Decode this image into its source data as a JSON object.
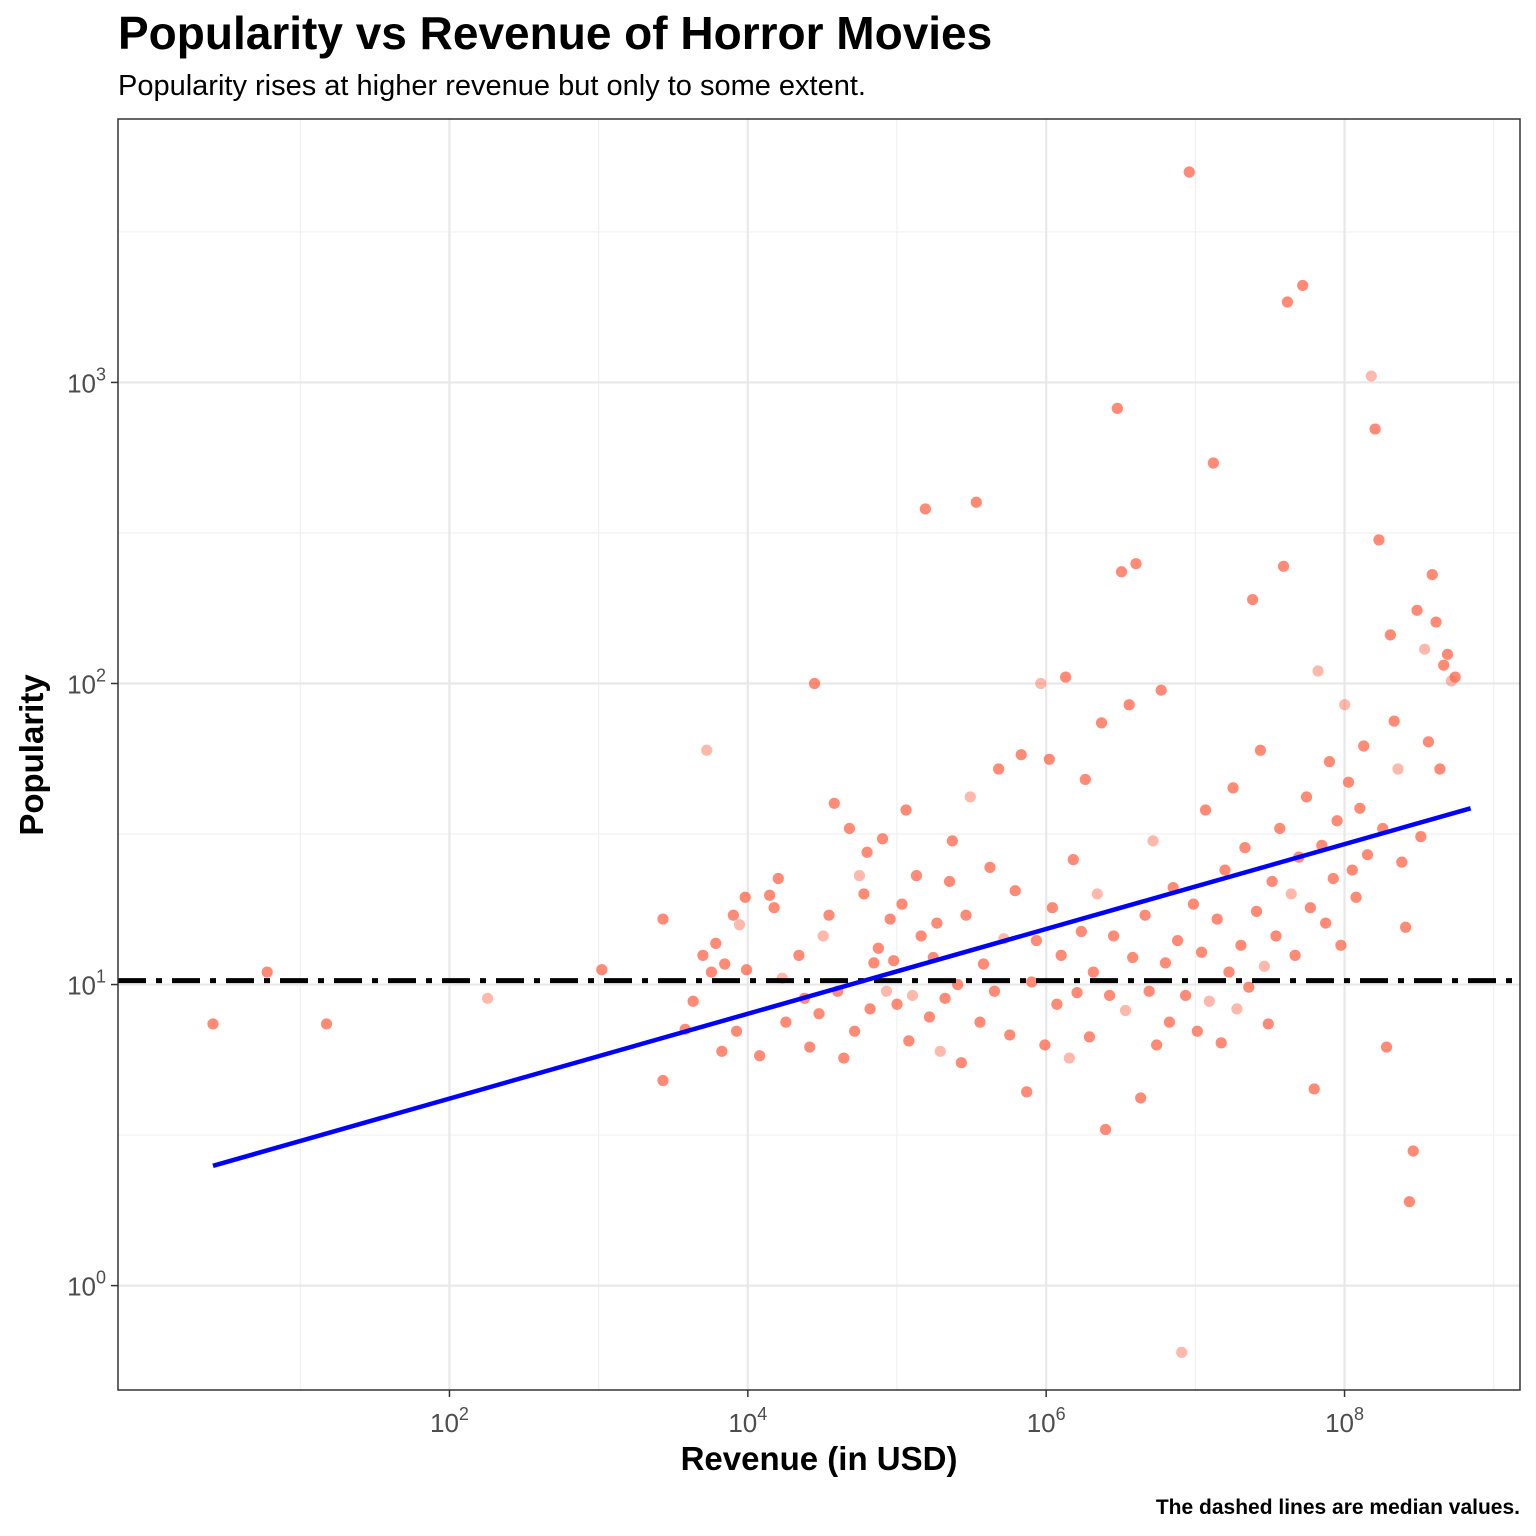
{
  "chart_data": {
    "type": "scatter",
    "title": "Popularity vs Revenue of Horror Movies",
    "subtitle": "Popularity rises at higher revenue but only to some extent.",
    "xlabel": "Revenue (in USD)",
    "ylabel": "Popularity",
    "caption": "The dashed lines are median values.",
    "x_scale": "log10",
    "y_scale": "log10",
    "xlim": [
      0.6,
      1500000000
    ],
    "ylim": [
      0.45,
      7500
    ],
    "x_ticks": [
      {
        "value": 100,
        "base": "10",
        "exp": "2"
      },
      {
        "value": 10000,
        "base": "10",
        "exp": "4"
      },
      {
        "value": 1000000,
        "base": "10",
        "exp": "6"
      },
      {
        "value": 100000000,
        "base": "10",
        "exp": "8"
      }
    ],
    "y_ticks": [
      {
        "value": 1,
        "base": "10",
        "exp": "0"
      },
      {
        "value": 10,
        "base": "10",
        "exp": "1"
      },
      {
        "value": 100,
        "base": "10",
        "exp": "2"
      },
      {
        "value": 1000,
        "base": "10",
        "exp": "3"
      }
    ],
    "grid": true,
    "median_popularity": 10.3,
    "trend_line": {
      "x": [
        2.6,
        700000000
      ],
      "y": [
        2.5,
        38.5
      ]
    },
    "points": [
      [
        2.6,
        7.4
      ],
      [
        6,
        11
      ],
      [
        15,
        7.4
      ],
      [
        180,
        9
      ],
      [
        1050,
        11.2
      ],
      [
        2700,
        16.5
      ],
      [
        2700,
        4.8
      ],
      [
        3800,
        7.1
      ],
      [
        4300,
        8.8
      ],
      [
        5000,
        12.5
      ],
      [
        5300,
        60
      ],
      [
        5700,
        11
      ],
      [
        6100,
        13.7
      ],
      [
        6700,
        6
      ],
      [
        7000,
        11.7
      ],
      [
        8000,
        17
      ],
      [
        8400,
        7
      ],
      [
        8800,
        15.8
      ],
      [
        9600,
        19.5
      ],
      [
        9800,
        11.2
      ],
      [
        12000,
        5.8
      ],
      [
        14000,
        19.8
      ],
      [
        15000,
        18
      ],
      [
        16000,
        22.5
      ],
      [
        17000,
        10.5
      ],
      [
        18000,
        7.5
      ],
      [
        22000,
        12.5
      ],
      [
        24000,
        9
      ],
      [
        26000,
        6.2
      ],
      [
        28000,
        100
      ],
      [
        30000,
        8
      ],
      [
        32000,
        14.5
      ],
      [
        35000,
        17
      ],
      [
        38000,
        40
      ],
      [
        40000,
        9.5
      ],
      [
        44000,
        5.7
      ],
      [
        48000,
        33
      ],
      [
        52000,
        7
      ],
      [
        56000,
        23
      ],
      [
        60000,
        20
      ],
      [
        63000,
        27.5
      ],
      [
        66000,
        8.3
      ],
      [
        70000,
        11.8
      ],
      [
        75000,
        13.2
      ],
      [
        80000,
        30.5
      ],
      [
        85000,
        9.5
      ],
      [
        90000,
        16.5
      ],
      [
        95000,
        12
      ],
      [
        100000,
        8.6
      ],
      [
        108000,
        18.5
      ],
      [
        115000,
        38
      ],
      [
        120000,
        6.5
      ],
      [
        127000,
        9.2
      ],
      [
        135000,
        23
      ],
      [
        145000,
        14.5
      ],
      [
        155000,
        380
      ],
      [
        165000,
        7.8
      ],
      [
        175000,
        12.3
      ],
      [
        185000,
        16
      ],
      [
        195000,
        6
      ],
      [
        210000,
        9
      ],
      [
        225000,
        22
      ],
      [
        235000,
        30
      ],
      [
        255000,
        10
      ],
      [
        270000,
        5.5
      ],
      [
        290000,
        17
      ],
      [
        310000,
        42
      ],
      [
        340000,
        400
      ],
      [
        360000,
        7.5
      ],
      [
        380000,
        11.7
      ],
      [
        420000,
        24.5
      ],
      [
        450000,
        9.5
      ],
      [
        480000,
        52
      ],
      [
        520000,
        14.2
      ],
      [
        570000,
        6.8
      ],
      [
        620000,
        20.5
      ],
      [
        680000,
        58
      ],
      [
        740000,
        4.4
      ],
      [
        800000,
        10.2
      ],
      [
        860000,
        14
      ],
      [
        920000,
        100
      ],
      [
        980000,
        6.3
      ],
      [
        1050000,
        56
      ],
      [
        1100000,
        18
      ],
      [
        1180000,
        8.6
      ],
      [
        1260000,
        12.5
      ],
      [
        1350000,
        105
      ],
      [
        1430000,
        5.7
      ],
      [
        1520000,
        26
      ],
      [
        1610000,
        9.4
      ],
      [
        1720000,
        15
      ],
      [
        1830000,
        48
      ],
      [
        1950000,
        6.7
      ],
      [
        2070000,
        11
      ],
      [
        2200000,
        20
      ],
      [
        2350000,
        74
      ],
      [
        2500000,
        3.3
      ],
      [
        2660000,
        9.2
      ],
      [
        2830000,
        14.5
      ],
      [
        3000000,
        820
      ],
      [
        3200000,
        235
      ],
      [
        3400000,
        8.2
      ],
      [
        3600000,
        85
      ],
      [
        3800000,
        12.3
      ],
      [
        4000000,
        250
      ],
      [
        4300000,
        4.2
      ],
      [
        4600000,
        17
      ],
      [
        4900000,
        9.5
      ],
      [
        5200000,
        30
      ],
      [
        5500000,
        6.3
      ],
      [
        5900000,
        95
      ],
      [
        6300000,
        11.8
      ],
      [
        6700000,
        7.5
      ],
      [
        7100000,
        21
      ],
      [
        7600000,
        14
      ],
      [
        8100000,
        0.6
      ],
      [
        8600000,
        9.2
      ],
      [
        9100000,
        5000
      ],
      [
        9700000,
        18.5
      ],
      [
        10300000,
        7
      ],
      [
        11000000,
        12.8
      ],
      [
        11700000,
        38
      ],
      [
        12400000,
        8.8
      ],
      [
        13200000,
        540
      ],
      [
        14000000,
        16.5
      ],
      [
        14900000,
        6.4
      ],
      [
        15800000,
        24
      ],
      [
        16800000,
        11
      ],
      [
        17900000,
        45
      ],
      [
        19000000,
        8.3
      ],
      [
        20200000,
        13.5
      ],
      [
        21500000,
        28.5
      ],
      [
        22800000,
        9.8
      ],
      [
        24200000,
        190
      ],
      [
        25700000,
        17.5
      ],
      [
        27300000,
        60
      ],
      [
        29000000,
        11.5
      ],
      [
        30800000,
        7.4
      ],
      [
        32700000,
        22
      ],
      [
        34700000,
        14.5
      ],
      [
        36800000,
        33
      ],
      [
        39000000,
        245
      ],
      [
        41400000,
        1850
      ],
      [
        43900000,
        20
      ],
      [
        46600000,
        12.5
      ],
      [
        49400000,
        26.5
      ],
      [
        52400000,
        2100
      ],
      [
        55600000,
        42
      ],
      [
        59000000,
        18
      ],
      [
        62600000,
        4.5
      ],
      [
        66400000,
        110
      ],
      [
        70400000,
        29
      ],
      [
        74700000,
        16
      ],
      [
        79200000,
        55
      ],
      [
        84000000,
        22.5
      ],
      [
        89100000,
        35
      ],
      [
        94500000,
        13.5
      ],
      [
        100200000,
        85
      ],
      [
        106300000,
        47
      ],
      [
        112700000,
        24
      ],
      [
        119500000,
        19.5
      ],
      [
        126700000,
        38.5
      ],
      [
        134400000,
        62
      ],
      [
        142500000,
        27
      ],
      [
        151100000,
        1050
      ],
      [
        160300000,
        700
      ],
      [
        170000000,
        300
      ],
      [
        180300000,
        33
      ],
      [
        191200000,
        6.2
      ],
      [
        202800000,
        145
      ],
      [
        215100000,
        75
      ],
      [
        228100000,
        52
      ],
      [
        241900000,
        25.5
      ],
      [
        256600000,
        15.5
      ],
      [
        272100000,
        1.9
      ],
      [
        288600000,
        2.8
      ],
      [
        306100000,
        175
      ],
      [
        324600000,
        31
      ],
      [
        344300000,
        130
      ],
      [
        365100000,
        64
      ],
      [
        387200000,
        230
      ],
      [
        410700000,
        160
      ],
      [
        435600000,
        52
      ],
      [
        462000000,
        115
      ],
      [
        490000000,
        125
      ],
      [
        519700000,
        102
      ],
      [
        551200000,
        105
      ]
    ]
  }
}
